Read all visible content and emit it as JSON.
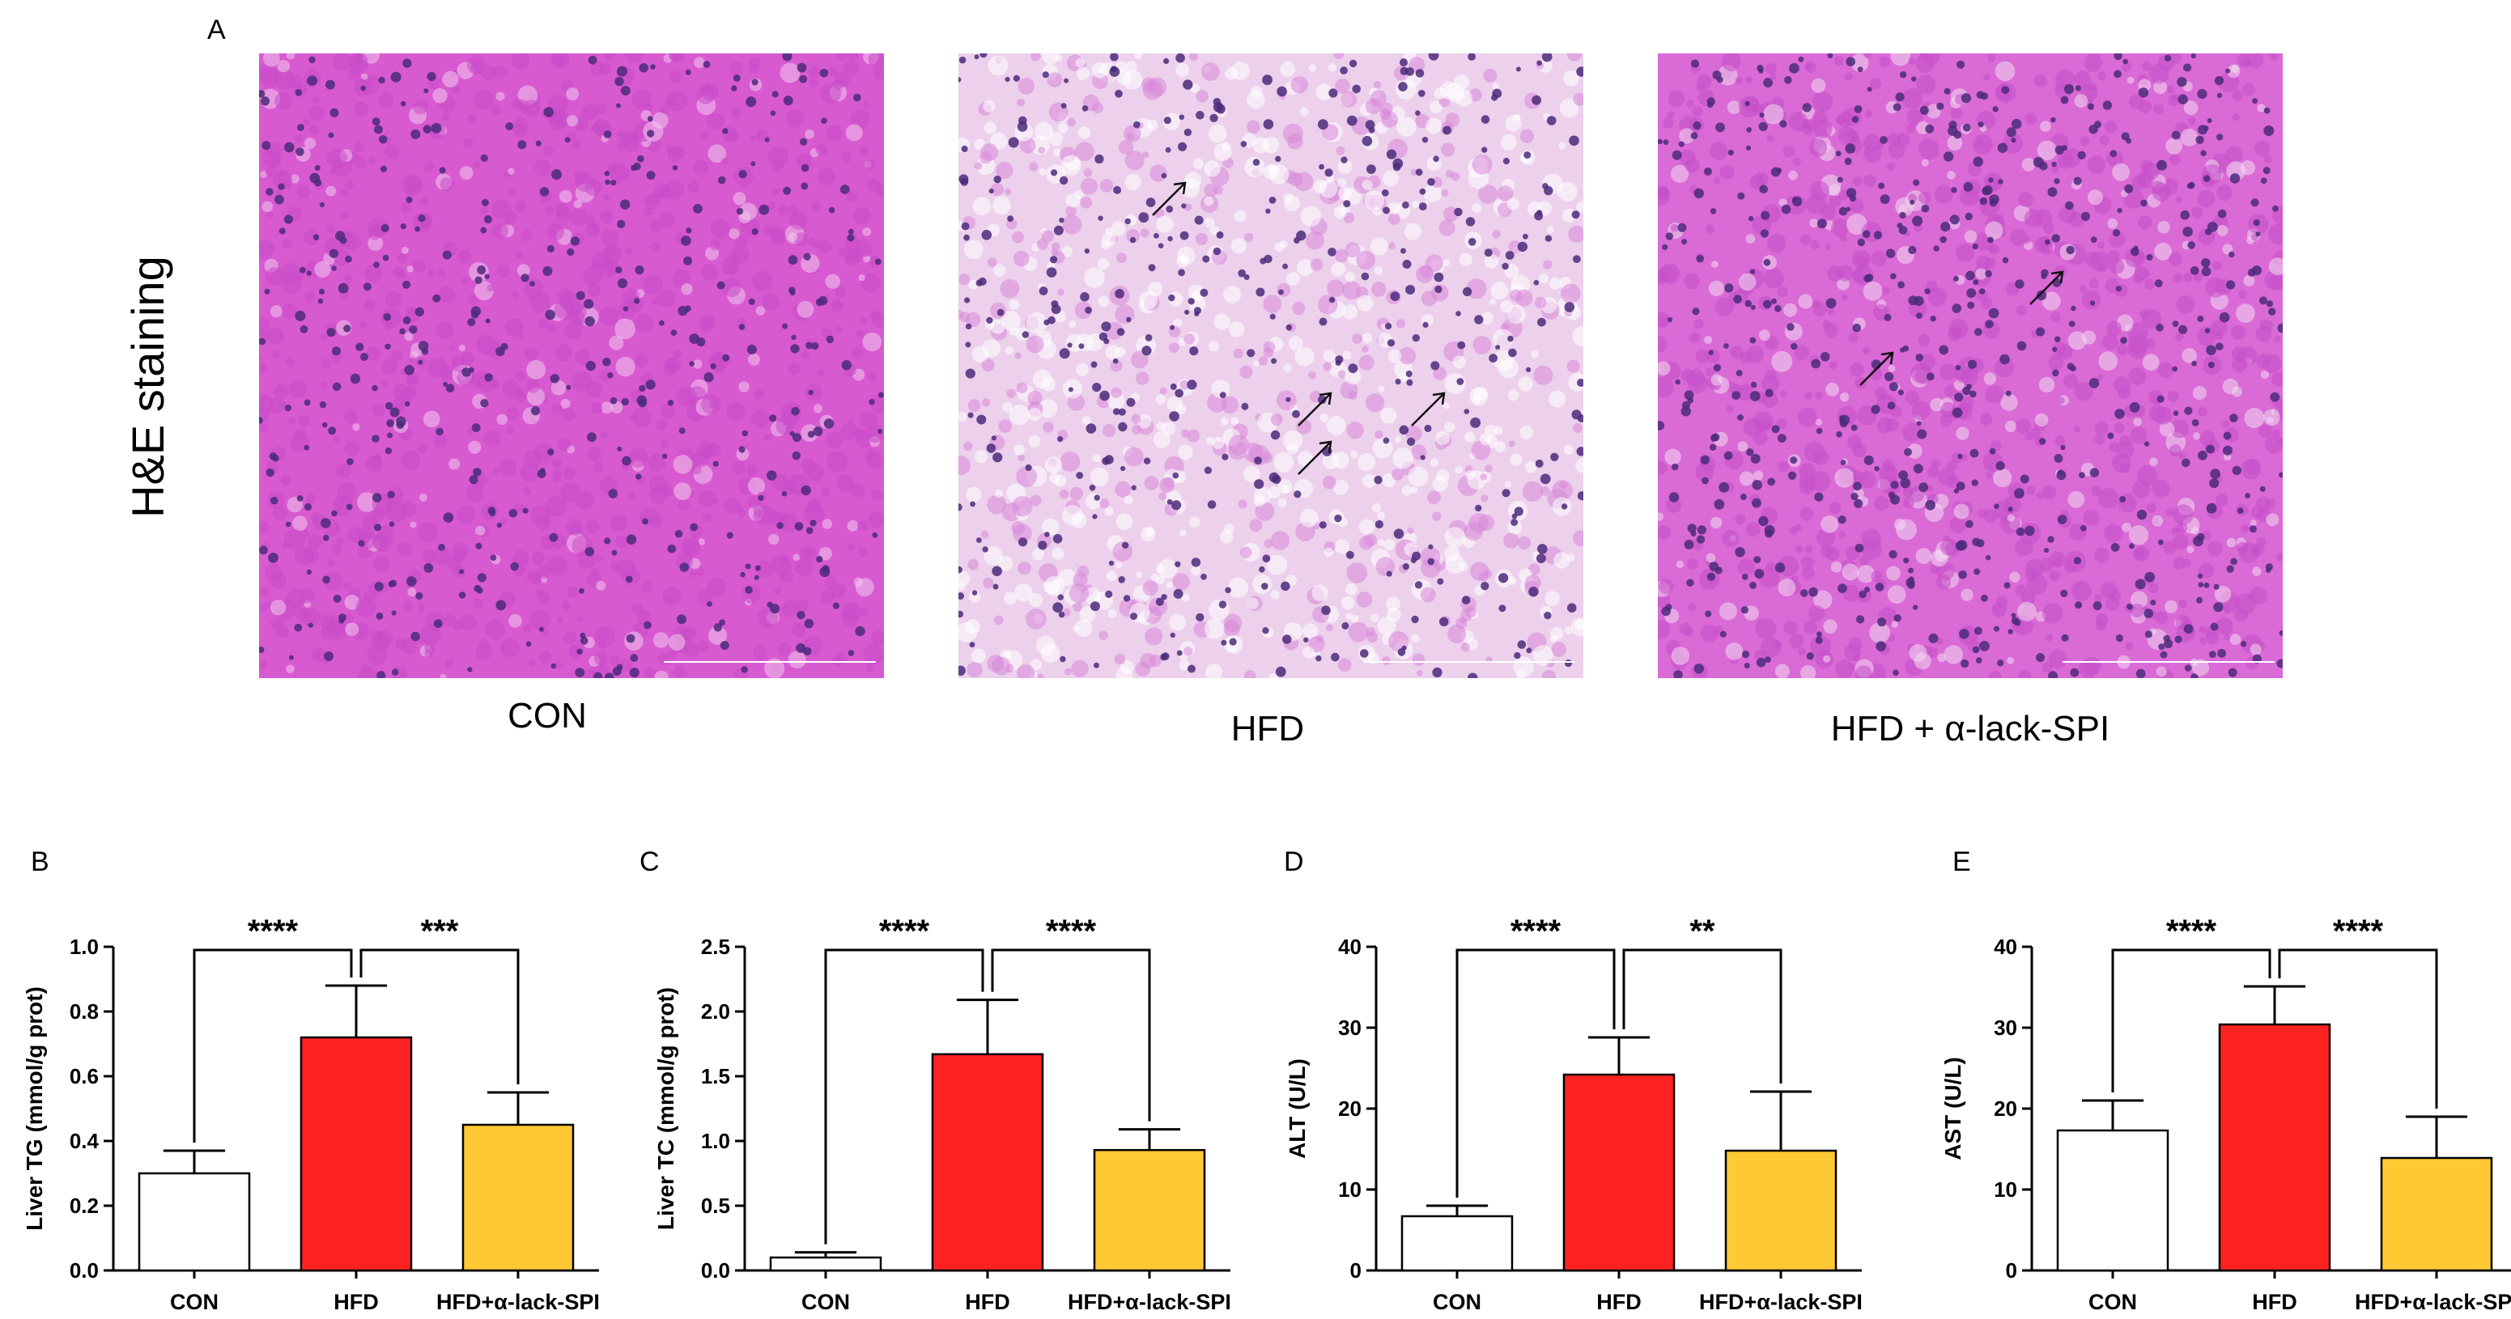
{
  "panels": {
    "A": "A",
    "B": "B",
    "C": "C",
    "D": "D",
    "E": "E"
  },
  "staining_label": "H&E staining",
  "micrographs": [
    {
      "label": "CON",
      "tissue": "normal",
      "base_color": "#d85ad0"
    },
    {
      "label": "HFD",
      "tissue": "steatosis",
      "base_color": "#ecd0ec"
    },
    {
      "label": "HFD + α-lack-SPI",
      "tissue": "intermediate",
      "base_color": "#d96ad6"
    }
  ],
  "colors": {
    "CON": "#ffffff",
    "HFD": "#ff2222",
    "HFD+α-lack-SPI": "#ffc933"
  },
  "chart_data": [
    {
      "type": "bar",
      "panel": "B",
      "categories": [
        "CON",
        "HFD",
        "HFD+α-lack-SPI"
      ],
      "values": [
        0.3,
        0.72,
        0.45
      ],
      "errors": [
        0.07,
        0.16,
        0.1
      ],
      "ylabel": "Liver TG (mmol/g prot)",
      "ylim": [
        0,
        1.0
      ],
      "yticks": [
        "0.0",
        "0.2",
        "0.4",
        "0.6",
        "0.8",
        "1.0"
      ],
      "significance": [
        {
          "from": 0,
          "to": 1,
          "label": "****"
        },
        {
          "from": 1,
          "to": 2,
          "label": "***"
        }
      ]
    },
    {
      "type": "bar",
      "panel": "C",
      "categories": [
        "CON",
        "HFD",
        "HFD+α-lack-SPI"
      ],
      "values": [
        0.1,
        1.67,
        0.93
      ],
      "errors": [
        0.04,
        0.42,
        0.16
      ],
      "ylabel": "Liver TC (mmol/g prot)",
      "ylim": [
        0,
        2.5
      ],
      "yticks": [
        "0.0",
        "0.5",
        "1.0",
        "1.5",
        "2.0",
        "2.5"
      ],
      "significance": [
        {
          "from": 0,
          "to": 1,
          "label": "****"
        },
        {
          "from": 1,
          "to": 2,
          "label": "****"
        }
      ]
    },
    {
      "type": "bar",
      "panel": "D",
      "categories": [
        "CON",
        "HFD",
        "HFD+α-lack-SPI"
      ],
      "values": [
        6.7,
        24.2,
        14.8
      ],
      "errors": [
        1.3,
        4.6,
        7.3
      ],
      "ylabel": "ALT (U/L)",
      "ylim": [
        0,
        40
      ],
      "yticks": [
        "0",
        "10",
        "20",
        "30",
        "40"
      ],
      "significance": [
        {
          "from": 0,
          "to": 1,
          "label": "****"
        },
        {
          "from": 1,
          "to": 2,
          "label": "**"
        }
      ]
    },
    {
      "type": "bar",
      "panel": "E",
      "categories": [
        "CON",
        "HFD",
        "HFD+α-lack-SPI"
      ],
      "values": [
        17.3,
        30.4,
        13.9
      ],
      "errors": [
        3.7,
        4.7,
        5.1
      ],
      "ylabel": "AST (U/L)",
      "ylim": [
        0,
        40
      ],
      "yticks": [
        "0",
        "10",
        "20",
        "30",
        "40"
      ],
      "significance": [
        {
          "from": 0,
          "to": 1,
          "label": "****"
        },
        {
          "from": 1,
          "to": 2,
          "label": "****"
        }
      ]
    }
  ]
}
